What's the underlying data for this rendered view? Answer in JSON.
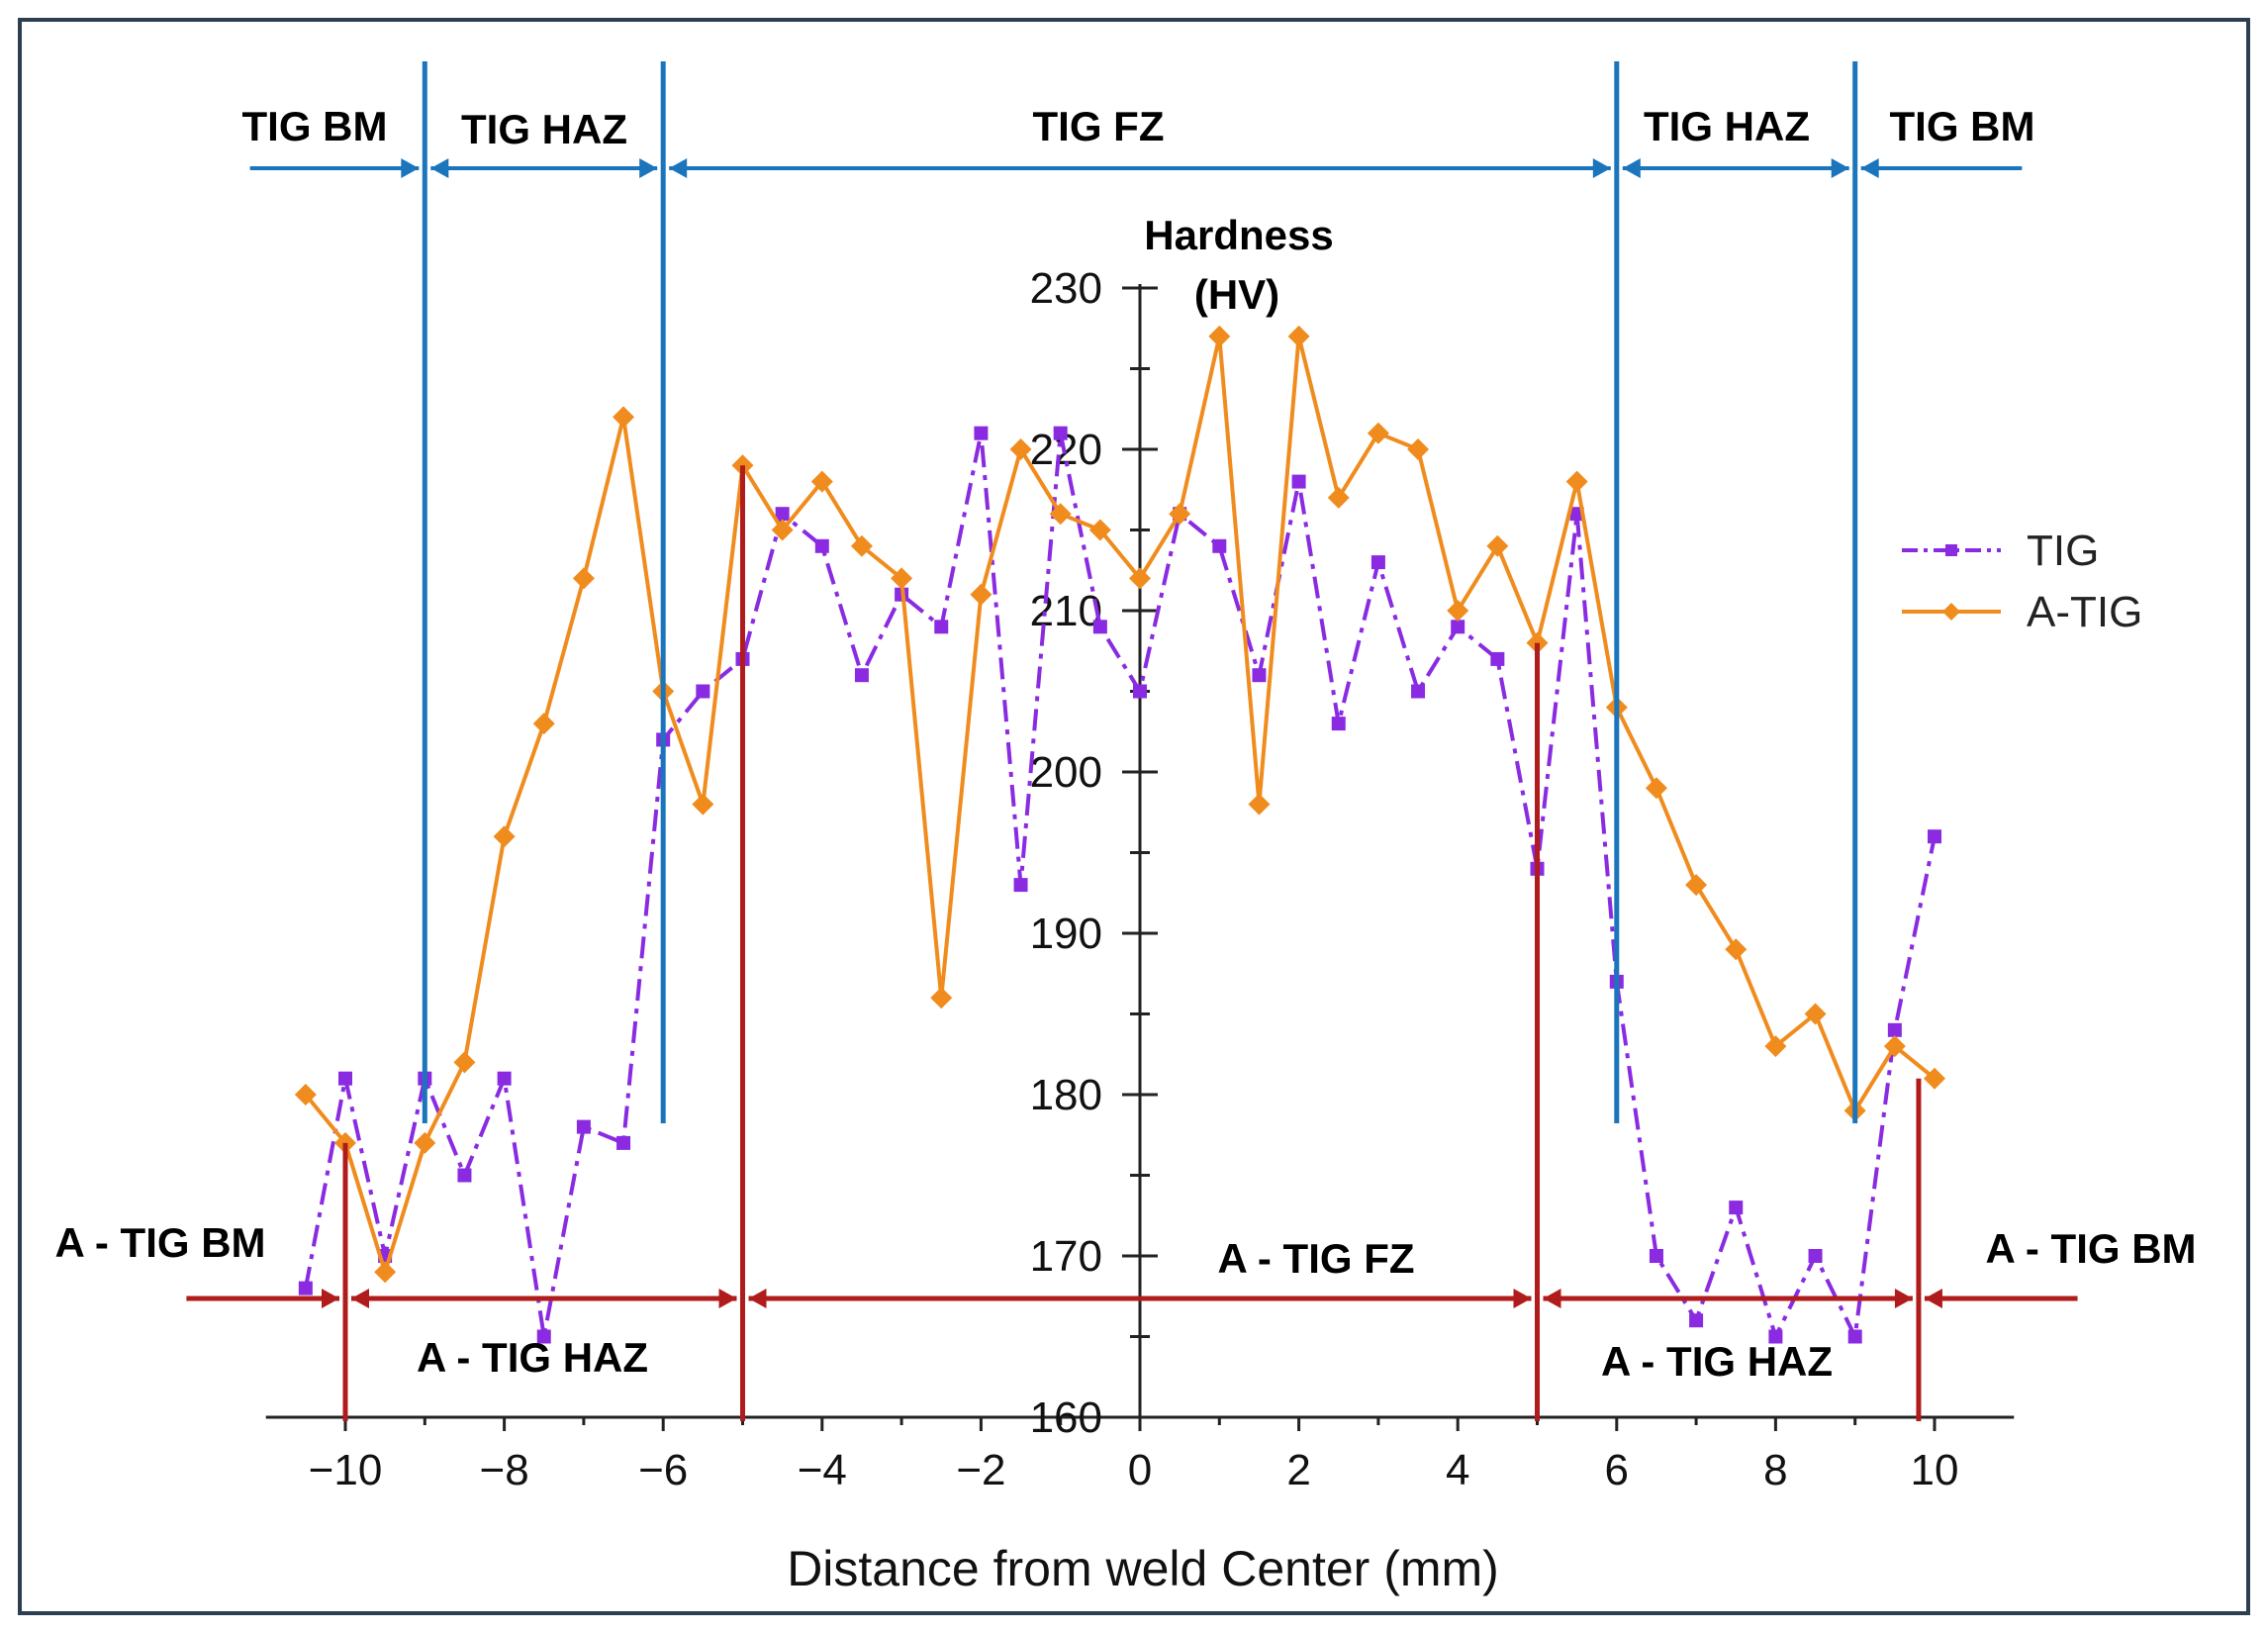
{
  "chart_data": {
    "type": "line",
    "title": "",
    "xlabel": "Distance from weld Center (mm)",
    "ylabel": "Hardness (HV)",
    "ylabel_lines": [
      "Hardness",
      "(HV)"
    ],
    "xlim": [
      -11,
      11
    ],
    "ylim": [
      160,
      230
    ],
    "x_ticks": [
      -10,
      -8,
      -6,
      -4,
      -2,
      0,
      2,
      4,
      6,
      8,
      10
    ],
    "x_tick_labels": [
      "−10",
      "−8",
      "−6",
      "−4",
      "−2",
      "0",
      "2",
      "4",
      "6",
      "8",
      "10"
    ],
    "y_ticks": [
      160,
      170,
      180,
      190,
      200,
      210,
      220,
      230
    ],
    "y_tick_labels": [
      "160",
      "170",
      "180",
      "190",
      "200",
      "210",
      "220",
      "230"
    ],
    "grid": false,
    "legend_position": "right",
    "series": [
      {
        "name": "TIG",
        "color": "#8a2be2",
        "style": "dash-dot",
        "marker": "square",
        "x": [
          -10.5,
          -10,
          -9.5,
          -9,
          -8.5,
          -8,
          -7.5,
          -7,
          -6.5,
          -6,
          -5.5,
          -5,
          -4.5,
          -4,
          -3.5,
          -3,
          -2.5,
          -2,
          -1.5,
          -1,
          -0.5,
          0,
          0.5,
          1,
          1.5,
          2,
          2.5,
          3,
          3.5,
          4,
          4.5,
          5,
          5.5,
          6,
          6.5,
          7,
          7.5,
          8,
          8.5,
          9,
          9.5,
          10
        ],
        "values": [
          168,
          181,
          170,
          181,
          175,
          181,
          165,
          178,
          177,
          202,
          205,
          207,
          216,
          214,
          206,
          211,
          209,
          221,
          193,
          221,
          209,
          205,
          216,
          214,
          206,
          218,
          203,
          213,
          205,
          209,
          207,
          194,
          216,
          187,
          170,
          166,
          173,
          165,
          170,
          165,
          184,
          196
        ]
      },
      {
        "name": "A-TIG",
        "color": "#f08c1e",
        "style": "solid",
        "marker": "diamond",
        "x": [
          -10.5,
          -10,
          -9.5,
          -9,
          -8.5,
          -8,
          -7.5,
          -7,
          -6.5,
          -6,
          -5.5,
          -5,
          -4.5,
          -4,
          -3.5,
          -3,
          -2.5,
          -2,
          -1.5,
          -1,
          -0.5,
          0,
          0.5,
          1,
          1.5,
          2,
          2.5,
          3,
          3.5,
          4,
          4.5,
          5,
          5.5,
          6,
          6.5,
          7,
          7.5,
          8,
          8.5,
          9,
          9.5,
          10
        ],
        "values": [
          180,
          177,
          169,
          177,
          182,
          196,
          203,
          212,
          222,
          205,
          198,
          219,
          215,
          218,
          214,
          212,
          186,
          211,
          220,
          216,
          215,
          212,
          216,
          227,
          198,
          227,
          217,
          221,
          220,
          210,
          214,
          208,
          218,
          204,
          199,
          193,
          189,
          183,
          185,
          179,
          183,
          181
        ]
      }
    ],
    "annotations": {
      "tig_zones": {
        "boundaries_mm": [
          -9,
          -6,
          6,
          9
        ],
        "labels": [
          {
            "text": "TIG BM",
            "center_mm": -10.2
          },
          {
            "text": "TIG HAZ",
            "center_mm": -7.5
          },
          {
            "text": "TIG FZ",
            "center_mm": 0
          },
          {
            "text": "TIG HAZ",
            "center_mm": 7.4
          },
          {
            "text": "TIG BM",
            "center_mm": 10.4
          }
        ],
        "color": "#1a75bc"
      },
      "atig_zones": {
        "boundaries_mm": [
          -10,
          -5,
          5,
          9.8
        ],
        "labels": [
          {
            "text": "A - TIG BM"
          },
          {
            "text": "A - TIG HAZ"
          },
          {
            "text": "A - TIG FZ"
          },
          {
            "text": "A - TIG HAZ"
          },
          {
            "text": "A - TIG BM"
          }
        ],
        "color": "#b01c1c"
      }
    }
  }
}
